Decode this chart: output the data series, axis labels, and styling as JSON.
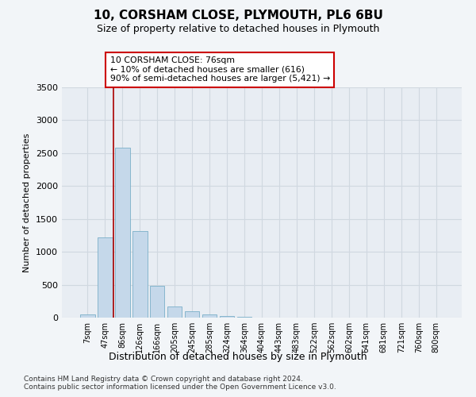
{
  "title1": "10, CORSHAM CLOSE, PLYMOUTH, PL6 6BU",
  "title2": "Size of property relative to detached houses in Plymouth",
  "xlabel": "Distribution of detached houses by size in Plymouth",
  "ylabel": "Number of detached properties",
  "footnote": "Contains HM Land Registry data © Crown copyright and database right 2024.\nContains public sector information licensed under the Open Government Licence v3.0.",
  "bar_labels": [
    "7sqm",
    "47sqm",
    "86sqm",
    "126sqm",
    "166sqm",
    "205sqm",
    "245sqm",
    "285sqm",
    "324sqm",
    "364sqm",
    "404sqm",
    "443sqm",
    "483sqm",
    "522sqm",
    "562sqm",
    "602sqm",
    "641sqm",
    "681sqm",
    "721sqm",
    "760sqm",
    "800sqm"
  ],
  "bar_values": [
    50,
    1220,
    2580,
    1310,
    480,
    175,
    100,
    50,
    30,
    15,
    5,
    2,
    0,
    0,
    0,
    0,
    0,
    0,
    0,
    0,
    0
  ],
  "bar_color": "#c5d8ea",
  "bar_edge_color": "#7aafc8",
  "ylim": [
    0,
    3500
  ],
  "yticks": [
    0,
    500,
    1000,
    1500,
    2000,
    2500,
    3000,
    3500
  ],
  "property_line_x": 1.5,
  "property_line_color": "#aa0000",
  "annotation_text": "10 CORSHAM CLOSE: 76sqm\n← 10% of detached houses are smaller (616)\n90% of semi-detached houses are larger (5,421) →",
  "annotation_box_color": "#ffffff",
  "annotation_box_edge": "#cc0000",
  "background_color": "#f2f5f8",
  "plot_bg_color": "#e8edf3",
  "grid_color": "#d0d8e0"
}
